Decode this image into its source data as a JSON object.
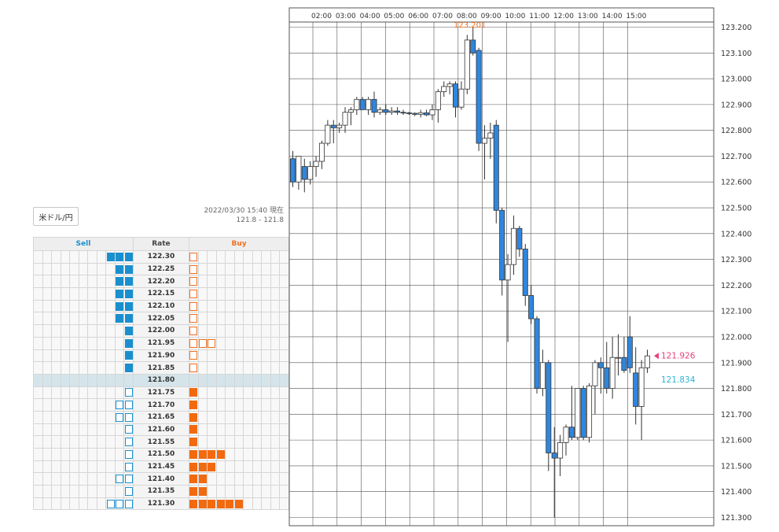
{
  "pair": {
    "label": "米ドル/円"
  },
  "timestamp": {
    "line1": "2022/03/30 15:40 現在",
    "line2": "121.8 - 121.8"
  },
  "book": {
    "headers": {
      "sell": "Sell",
      "rate": "Rate",
      "buy": "Buy"
    },
    "current_rate": "121.80",
    "rows": [
      {
        "rate": "122.30",
        "sell_filled": 3,
        "sell_empty": 0,
        "buy_filled": 0,
        "buy_empty": 1
      },
      {
        "rate": "122.25",
        "sell_filled": 2,
        "sell_empty": 0,
        "buy_filled": 0,
        "buy_empty": 1
      },
      {
        "rate": "122.20",
        "sell_filled": 2,
        "sell_empty": 0,
        "buy_filled": 0,
        "buy_empty": 1
      },
      {
        "rate": "122.15",
        "sell_filled": 2,
        "sell_empty": 0,
        "buy_filled": 0,
        "buy_empty": 1
      },
      {
        "rate": "122.10",
        "sell_filled": 2,
        "sell_empty": 0,
        "buy_filled": 0,
        "buy_empty": 1
      },
      {
        "rate": "122.05",
        "sell_filled": 2,
        "sell_empty": 0,
        "buy_filled": 0,
        "buy_empty": 1
      },
      {
        "rate": "122.00",
        "sell_filled": 1,
        "sell_empty": 0,
        "buy_filled": 0,
        "buy_empty": 1
      },
      {
        "rate": "121.95",
        "sell_filled": 1,
        "sell_empty": 0,
        "buy_filled": 0,
        "buy_empty": 3
      },
      {
        "rate": "121.90",
        "sell_filled": 1,
        "sell_empty": 0,
        "buy_filled": 0,
        "buy_empty": 1
      },
      {
        "rate": "121.85",
        "sell_filled": 1,
        "sell_empty": 0,
        "buy_filled": 0,
        "buy_empty": 1
      },
      {
        "rate": "121.80",
        "sell_filled": 0,
        "sell_empty": 0,
        "buy_filled": 0,
        "buy_empty": 0
      },
      {
        "rate": "121.75",
        "sell_filled": 0,
        "sell_empty": 1,
        "buy_filled": 1,
        "buy_empty": 0
      },
      {
        "rate": "121.70",
        "sell_filled": 0,
        "sell_empty": 2,
        "buy_filled": 1,
        "buy_empty": 0
      },
      {
        "rate": "121.65",
        "sell_filled": 0,
        "sell_empty": 2,
        "buy_filled": 1,
        "buy_empty": 0
      },
      {
        "rate": "121.60",
        "sell_filled": 0,
        "sell_empty": 1,
        "buy_filled": 1,
        "buy_empty": 0
      },
      {
        "rate": "121.55",
        "sell_filled": 0,
        "sell_empty": 1,
        "buy_filled": 1,
        "buy_empty": 0
      },
      {
        "rate": "121.50",
        "sell_filled": 0,
        "sell_empty": 1,
        "buy_filled": 4,
        "buy_empty": 0
      },
      {
        "rate": "121.45",
        "sell_filled": 0,
        "sell_empty": 1,
        "buy_filled": 3,
        "buy_empty": 0
      },
      {
        "rate": "121.40",
        "sell_filled": 0,
        "sell_empty": 2,
        "buy_filled": 2,
        "buy_empty": 0
      },
      {
        "rate": "121.35",
        "sell_filled": 0,
        "sell_empty": 1,
        "buy_filled": 2,
        "buy_empty": 0
      },
      {
        "rate": "121.30",
        "sell_filled": 0,
        "sell_empty": 3,
        "buy_filled": 6,
        "buy_empty": 0
      }
    ]
  },
  "chart_data": {
    "type": "candlestick",
    "x_tick_labels": [
      "02:00",
      "03:00",
      "04:00",
      "05:00",
      "06:00",
      "07:00",
      "08:00",
      "09:00",
      "10:00",
      "11:00",
      "12:00",
      "13:00",
      "14:00",
      "15:00"
    ],
    "y_tick_labels": [
      "123.200",
      "123.100",
      "123.000",
      "122.900",
      "122.800",
      "122.700",
      "122.600",
      "122.500",
      "122.400",
      "122.300",
      "122.200",
      "122.100",
      "122.000",
      "121.900",
      "121.800",
      "121.700",
      "121.600",
      "121.500",
      "121.400",
      "121.300"
    ],
    "ylim": [
      121.3,
      123.2
    ],
    "grid": true,
    "colors": {
      "up": "#ffffff",
      "down": "#2f86de",
      "wick": "#333333",
      "ask": "#e8427c",
      "bid": "#2bb3d8",
      "high": "#f07020"
    },
    "max_label": "123.201",
    "ask_label": "121.926",
    "bid_label": "121.834",
    "ask": 121.926,
    "bid": 121.834,
    "candles": [
      {
        "o": 122.69,
        "h": 122.72,
        "l": 122.58,
        "c": 122.6
      },
      {
        "o": 122.6,
        "h": 122.7,
        "l": 122.57,
        "c": 122.7
      },
      {
        "o": 122.66,
        "h": 122.69,
        "l": 122.56,
        "c": 122.61
      },
      {
        "o": 122.61,
        "h": 122.68,
        "l": 122.59,
        "c": 122.66
      },
      {
        "o": 122.66,
        "h": 122.7,
        "l": 122.62,
        "c": 122.68
      },
      {
        "o": 122.68,
        "h": 122.76,
        "l": 122.65,
        "c": 122.75
      },
      {
        "o": 122.75,
        "h": 122.84,
        "l": 122.74,
        "c": 122.82
      },
      {
        "o": 122.82,
        "h": 122.84,
        "l": 122.75,
        "c": 122.81
      },
      {
        "o": 122.81,
        "h": 122.83,
        "l": 122.79,
        "c": 122.82
      },
      {
        "o": 122.82,
        "h": 122.89,
        "l": 122.79,
        "c": 122.87
      },
      {
        "o": 122.87,
        "h": 122.89,
        "l": 122.82,
        "c": 122.88
      },
      {
        "o": 122.88,
        "h": 122.93,
        "l": 122.86,
        "c": 122.92
      },
      {
        "o": 122.92,
        "h": 122.93,
        "l": 122.88,
        "c": 122.88
      },
      {
        "o": 122.88,
        "h": 122.93,
        "l": 122.86,
        "c": 122.92
      },
      {
        "o": 122.92,
        "h": 122.95,
        "l": 122.85,
        "c": 122.87
      },
      {
        "o": 122.87,
        "h": 122.89,
        "l": 122.86,
        "c": 122.88
      },
      {
        "o": 122.88,
        "h": 122.9,
        "l": 122.86,
        "c": 122.87
      },
      {
        "o": 122.87,
        "h": 122.89,
        "l": 122.86,
        "c": 122.875
      },
      {
        "o": 122.875,
        "h": 122.89,
        "l": 122.86,
        "c": 122.87
      },
      {
        "o": 122.87,
        "h": 122.88,
        "l": 122.86,
        "c": 122.868
      },
      {
        "o": 122.868,
        "h": 122.872,
        "l": 122.86,
        "c": 122.866
      },
      {
        "o": 122.866,
        "h": 122.87,
        "l": 122.855,
        "c": 122.862
      },
      {
        "o": 122.862,
        "h": 122.88,
        "l": 122.85,
        "c": 122.868
      },
      {
        "o": 122.868,
        "h": 122.88,
        "l": 122.855,
        "c": 122.86
      },
      {
        "o": 122.86,
        "h": 122.9,
        "l": 122.84,
        "c": 122.88
      },
      {
        "o": 122.88,
        "h": 122.96,
        "l": 122.83,
        "c": 122.95
      },
      {
        "o": 122.95,
        "h": 122.99,
        "l": 122.93,
        "c": 122.97
      },
      {
        "o": 122.97,
        "h": 122.99,
        "l": 122.94,
        "c": 122.98
      },
      {
        "o": 122.98,
        "h": 122.99,
        "l": 122.85,
        "c": 122.89
      },
      {
        "o": 122.89,
        "h": 122.99,
        "l": 122.88,
        "c": 122.96
      },
      {
        "o": 122.96,
        "h": 123.17,
        "l": 122.94,
        "c": 123.15
      },
      {
        "o": 123.15,
        "h": 123.201,
        "l": 123.09,
        "c": 123.1
      },
      {
        "o": 123.11,
        "h": 123.12,
        "l": 122.72,
        "c": 122.75
      },
      {
        "o": 122.75,
        "h": 122.82,
        "l": 122.61,
        "c": 122.77
      },
      {
        "o": 122.77,
        "h": 122.83,
        "l": 122.69,
        "c": 122.79
      },
      {
        "o": 122.82,
        "h": 122.84,
        "l": 122.44,
        "c": 122.49
      },
      {
        "o": 122.49,
        "h": 122.5,
        "l": 122.16,
        "c": 122.22
      },
      {
        "o": 122.22,
        "h": 122.32,
        "l": 121.98,
        "c": 122.28
      },
      {
        "o": 122.28,
        "h": 122.47,
        "l": 122.24,
        "c": 122.42
      },
      {
        "o": 122.42,
        "h": 122.43,
        "l": 122.31,
        "c": 122.34
      },
      {
        "o": 122.34,
        "h": 122.36,
        "l": 122.12,
        "c": 122.16
      },
      {
        "o": 122.16,
        "h": 122.2,
        "l": 122.05,
        "c": 122.07
      },
      {
        "o": 122.07,
        "h": 122.08,
        "l": 121.78,
        "c": 121.8
      },
      {
        "o": 121.8,
        "h": 121.95,
        "l": 121.77,
        "c": 121.9
      },
      {
        "o": 121.9,
        "h": 121.91,
        "l": 121.48,
        "c": 121.55
      },
      {
        "o": 121.55,
        "h": 121.65,
        "l": 121.3,
        "c": 121.53
      },
      {
        "o": 121.53,
        "h": 121.62,
        "l": 121.46,
        "c": 121.59
      },
      {
        "o": 121.59,
        "h": 121.66,
        "l": 121.54,
        "c": 121.65
      },
      {
        "o": 121.65,
        "h": 121.81,
        "l": 121.6,
        "c": 121.61
      },
      {
        "o": 121.61,
        "h": 121.8,
        "l": 121.6,
        "c": 121.8
      },
      {
        "o": 121.8,
        "h": 121.81,
        "l": 121.6,
        "c": 121.61
      },
      {
        "o": 121.61,
        "h": 121.82,
        "l": 121.59,
        "c": 121.81
      },
      {
        "o": 121.81,
        "h": 121.91,
        "l": 121.7,
        "c": 121.9
      },
      {
        "o": 121.9,
        "h": 121.92,
        "l": 121.78,
        "c": 121.88
      },
      {
        "o": 121.88,
        "h": 121.98,
        "l": 121.78,
        "c": 121.8
      },
      {
        "o": 121.8,
        "h": 122.0,
        "l": 121.76,
        "c": 121.92
      },
      {
        "o": 121.92,
        "h": 122.01,
        "l": 121.85,
        "c": 121.92
      },
      {
        "o": 121.92,
        "h": 122.0,
        "l": 121.86,
        "c": 121.87
      },
      {
        "o": 122.0,
        "h": 122.08,
        "l": 121.86,
        "c": 121.88
      },
      {
        "o": 121.86,
        "h": 121.96,
        "l": 121.66,
        "c": 121.73
      },
      {
        "o": 121.73,
        "h": 121.91,
        "l": 121.6,
        "c": 121.88
      },
      {
        "o": 121.88,
        "h": 121.95,
        "l": 121.86,
        "c": 121.926
      }
    ]
  }
}
